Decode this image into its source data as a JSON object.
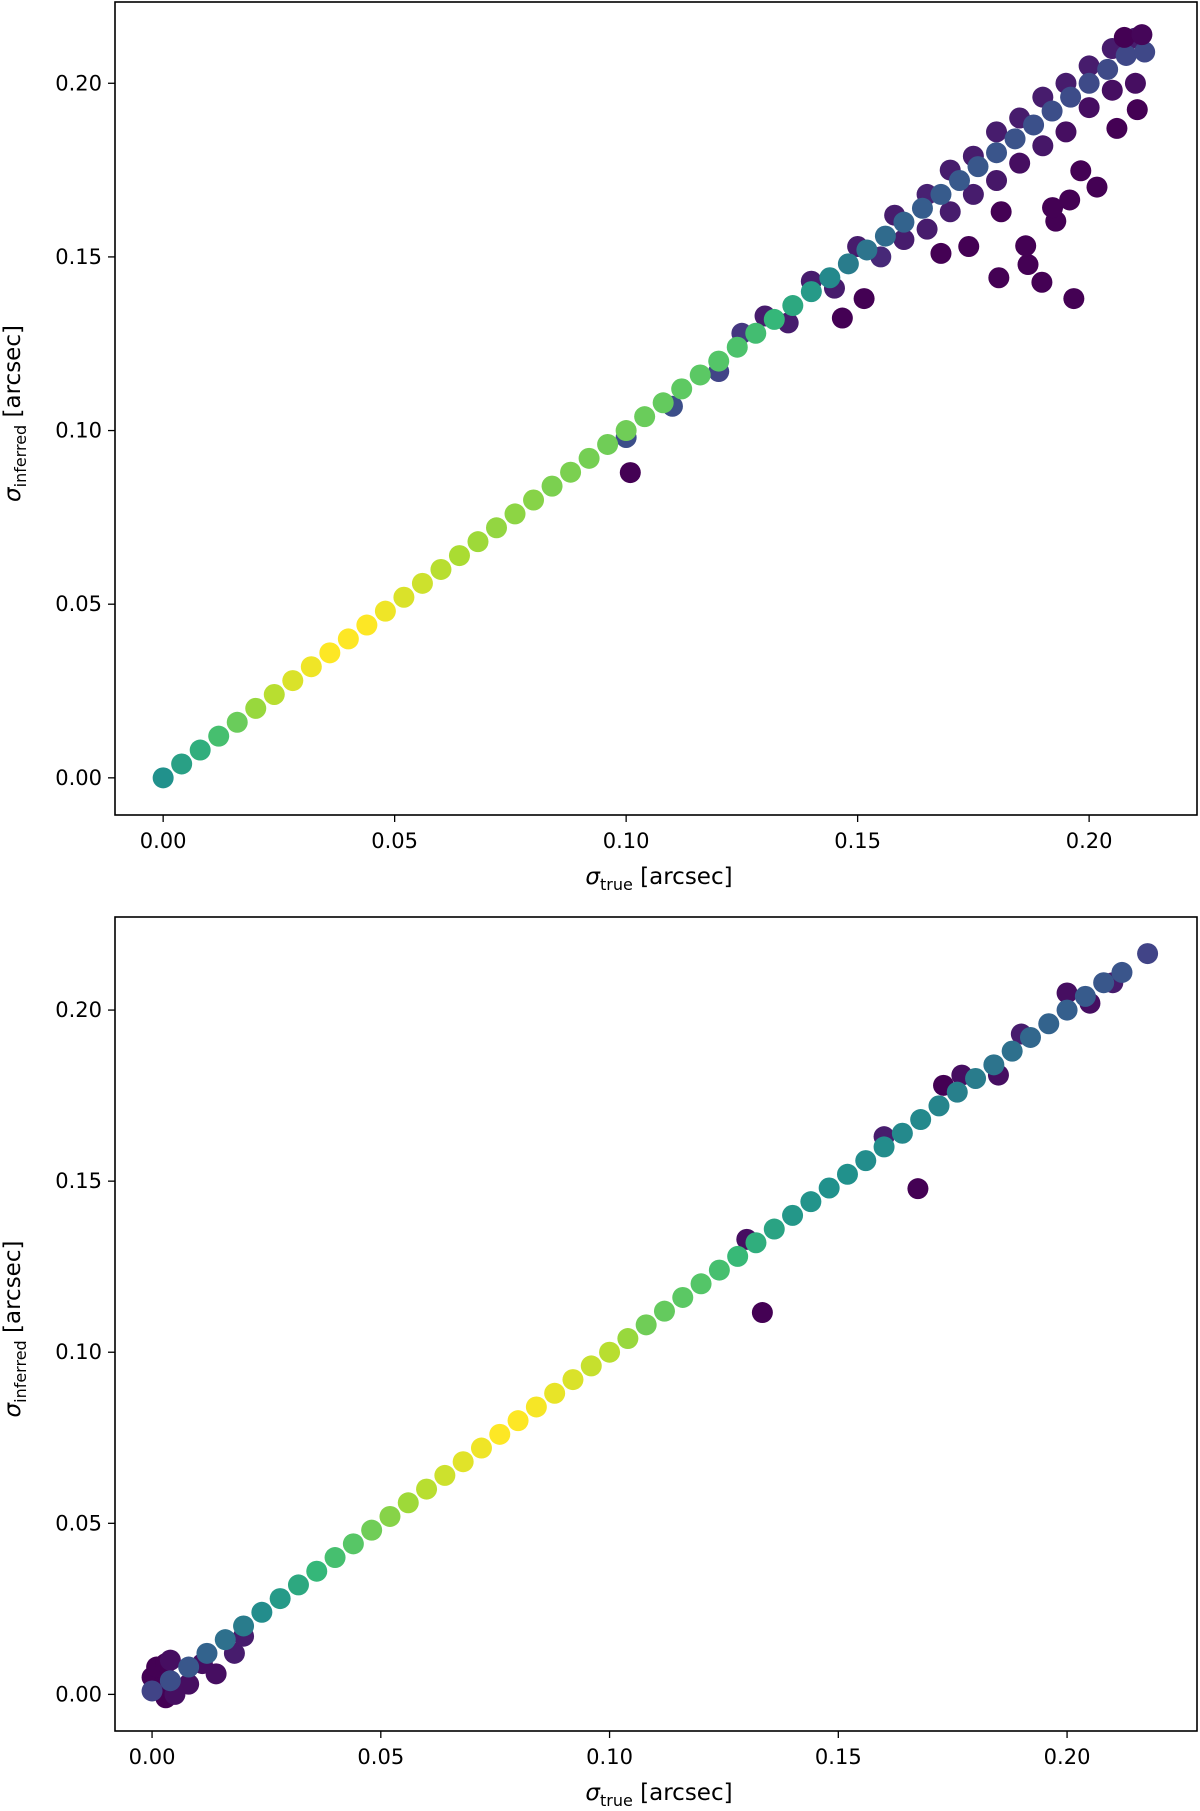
{
  "chart_data": [
    {
      "type": "scatter",
      "xlabel": {
        "symbol": "σ",
        "subscript": "true",
        "unit": "[arcsec]"
      },
      "ylabel": {
        "symbol": "σ",
        "subscript": "inferred",
        "unit": "[arcsec]"
      },
      "xlim": [
        -0.0104,
        0.2233
      ],
      "ylim": [
        -0.0107,
        0.2234
      ],
      "xticks": [
        "0.00",
        "0.05",
        "0.10",
        "0.15",
        "0.20"
      ],
      "yticks": [
        "0.00",
        "0.05",
        "0.10",
        "0.15",
        "0.20"
      ],
      "grid": false,
      "colormap": "viridis",
      "points_note_fields": [
        "x",
        "y",
        "color_value"
      ],
      "spread": [
        [
          0.1,
          0.098,
          0.3
        ],
        [
          0.11,
          0.107,
          0.3
        ],
        [
          0.12,
          0.117,
          0.25
        ],
        [
          0.125,
          0.128,
          0.2
        ],
        [
          0.13,
          0.133,
          0.1
        ],
        [
          0.135,
          0.131,
          0.1
        ],
        [
          0.14,
          0.143,
          0.1
        ],
        [
          0.145,
          0.141,
          0.1
        ],
        [
          0.15,
          0.153,
          0.1
        ],
        [
          0.155,
          0.15,
          0.15
        ],
        [
          0.158,
          0.162,
          0.1
        ],
        [
          0.16,
          0.155,
          0.1
        ],
        [
          0.165,
          0.168,
          0.12
        ],
        [
          0.165,
          0.158,
          0.1
        ],
        [
          0.17,
          0.175,
          0.1
        ],
        [
          0.17,
          0.163,
          0.1
        ],
        [
          0.175,
          0.179,
          0.1
        ],
        [
          0.175,
          0.168,
          0.1
        ],
        [
          0.18,
          0.186,
          0.1
        ],
        [
          0.18,
          0.172,
          0.08
        ],
        [
          0.185,
          0.19,
          0.1
        ],
        [
          0.185,
          0.177,
          0.05
        ],
        [
          0.19,
          0.196,
          0.1
        ],
        [
          0.19,
          0.182,
          0.08
        ],
        [
          0.195,
          0.2,
          0.1
        ],
        [
          0.195,
          0.186,
          0.05
        ],
        [
          0.2,
          0.205,
          0.1
        ],
        [
          0.2,
          0.193,
          0.05
        ],
        [
          0.205,
          0.21,
          0.1
        ],
        [
          0.205,
          0.198,
          0.05
        ],
        [
          0.21,
          0.213,
          0.1
        ],
        [
          0.21,
          0.2,
          0.05
        ]
      ],
      "outliers": [
        [
          0.1009,
          0.0879,
          0
        ],
        [
          0.1467,
          0.1324,
          0
        ],
        [
          0.1514,
          0.138,
          0
        ],
        [
          0.1805,
          0.144,
          0
        ],
        [
          0.1868,
          0.1478,
          0
        ],
        [
          0.1898,
          0.1427,
          0
        ],
        [
          0.1967,
          0.138,
          0
        ],
        [
          0.1928,
          0.1603,
          0
        ],
        [
          0.1921,
          0.1642,
          0
        ],
        [
          0.1958,
          0.1664,
          0
        ],
        [
          0.1982,
          0.1748,
          0
        ],
        [
          0.2017,
          0.1701,
          0
        ],
        [
          0.1863,
          0.1532,
          0
        ],
        [
          0.206,
          0.187,
          0
        ],
        [
          0.2104,
          0.1924,
          0
        ],
        [
          0.2076,
          0.2132,
          0
        ],
        [
          0.2114,
          0.214,
          0.02
        ],
        [
          0.181,
          0.163,
          0
        ],
        [
          0.168,
          0.151,
          0
        ],
        [
          0.174,
          0.153,
          0
        ]
      ],
      "main": [
        [
          0,
          0,
          0.5
        ],
        [
          0.004,
          0.004,
          0.55
        ],
        [
          0.008,
          0.008,
          0.6
        ],
        [
          0.012,
          0.012,
          0.68
        ],
        [
          0.016,
          0.016,
          0.77
        ],
        [
          0.02,
          0.02,
          0.85
        ],
        [
          0.024,
          0.024,
          0.9
        ],
        [
          0.028,
          0.028,
          0.95
        ],
        [
          0.032,
          0.032,
          0.98
        ],
        [
          0.036,
          0.036,
          1
        ],
        [
          0.04,
          0.04,
          1
        ],
        [
          0.044,
          0.044,
          1
        ],
        [
          0.048,
          0.048,
          0.98
        ],
        [
          0.052,
          0.052,
          0.95
        ],
        [
          0.056,
          0.056,
          0.93
        ],
        [
          0.06,
          0.06,
          0.9
        ],
        [
          0.064,
          0.064,
          0.88
        ],
        [
          0.068,
          0.068,
          0.86
        ],
        [
          0.072,
          0.072,
          0.84
        ],
        [
          0.076,
          0.076,
          0.83
        ],
        [
          0.08,
          0.08,
          0.82
        ],
        [
          0.084,
          0.084,
          0.8
        ],
        [
          0.088,
          0.088,
          0.8
        ],
        [
          0.092,
          0.092,
          0.79
        ],
        [
          0.096,
          0.096,
          0.78
        ],
        [
          0.1,
          0.1,
          0.78
        ],
        [
          0.104,
          0.104,
          0.77
        ],
        [
          0.108,
          0.108,
          0.76
        ],
        [
          0.112,
          0.112,
          0.75
        ],
        [
          0.116,
          0.116,
          0.74
        ],
        [
          0.12,
          0.12,
          0.72
        ],
        [
          0.124,
          0.124,
          0.7
        ],
        [
          0.128,
          0.128,
          0.67
        ],
        [
          0.132,
          0.132,
          0.63
        ],
        [
          0.136,
          0.136,
          0.58
        ],
        [
          0.14,
          0.14,
          0.53
        ],
        [
          0.144,
          0.144,
          0.48
        ],
        [
          0.148,
          0.148,
          0.45
        ],
        [
          0.152,
          0.152,
          0.43
        ],
        [
          0.156,
          0.156,
          0.41
        ],
        [
          0.16,
          0.16,
          0.39
        ],
        [
          0.164,
          0.164,
          0.37
        ],
        [
          0.168,
          0.168,
          0.36
        ],
        [
          0.172,
          0.172,
          0.35
        ],
        [
          0.176,
          0.176,
          0.34
        ],
        [
          0.18,
          0.18,
          0.33
        ],
        [
          0.184,
          0.184,
          0.32
        ],
        [
          0.188,
          0.188,
          0.31
        ],
        [
          0.192,
          0.192,
          0.3
        ],
        [
          0.196,
          0.196,
          0.29
        ],
        [
          0.2,
          0.2,
          0.28
        ],
        [
          0.204,
          0.204,
          0.28
        ],
        [
          0.208,
          0.208,
          0.27
        ],
        [
          0.212,
          0.209,
          0.27
        ]
      ]
    },
    {
      "type": "scatter",
      "xlabel": {
        "symbol": "σ",
        "subscript": "true",
        "unit": "[arcsec]"
      },
      "ylabel": {
        "symbol": "σ",
        "subscript": "inferred",
        "unit": "[arcsec]"
      },
      "xlim": [
        -0.0081,
        0.2284
      ],
      "ylim": [
        -0.0107,
        0.2272
      ],
      "xticks": [
        "0.00",
        "0.05",
        "0.10",
        "0.15",
        "0.20"
      ],
      "yticks": [
        "0.00",
        "0.05",
        "0.10",
        "0.15",
        "0.20"
      ],
      "grid": false,
      "colormap": "viridis",
      "spread": [
        [
          0,
          0.005,
          0
        ],
        [
          0.001,
          0.008,
          0
        ],
        [
          0.003,
          0.009,
          0
        ],
        [
          0.004,
          0.01,
          0.05
        ],
        [
          0.002,
          0.002,
          0
        ],
        [
          0.003,
          -0.001,
          0
        ],
        [
          0.005,
          0,
          0.05
        ],
        [
          0.008,
          0.003,
          0.05
        ],
        [
          0.011,
          0.009,
          0.05
        ],
        [
          0.014,
          0.006,
          0.05
        ],
        [
          0.018,
          0.012,
          0.1
        ],
        [
          0.02,
          0.017,
          0.1
        ],
        [
          0.13,
          0.133,
          0.05
        ],
        [
          0.16,
          0.163,
          0.1
        ],
        [
          0.173,
          0.178,
          0
        ],
        [
          0.177,
          0.181,
          0.05
        ],
        [
          0.185,
          0.181,
          0.05
        ],
        [
          0.19,
          0.193,
          0.1
        ],
        [
          0.2,
          0.205,
          0.05
        ],
        [
          0.205,
          0.202,
          0.05
        ],
        [
          0.21,
          0.208,
          0.1
        ]
      ],
      "outliers": [
        [
          0.1334,
          0.1116,
          0
        ],
        [
          0.1674,
          0.1478,
          0
        ],
        [
          0.2176,
          0.2165,
          0.25
        ]
      ],
      "main": [
        [
          0,
          0.001,
          0.25
        ],
        [
          0.004,
          0.004,
          0.3
        ],
        [
          0.008,
          0.008,
          0.34
        ],
        [
          0.012,
          0.012,
          0.39
        ],
        [
          0.016,
          0.016,
          0.42
        ],
        [
          0.02,
          0.02,
          0.45
        ],
        [
          0.024,
          0.024,
          0.49
        ],
        [
          0.028,
          0.028,
          0.53
        ],
        [
          0.032,
          0.032,
          0.58
        ],
        [
          0.036,
          0.036,
          0.63
        ],
        [
          0.04,
          0.04,
          0.68
        ],
        [
          0.044,
          0.044,
          0.73
        ],
        [
          0.048,
          0.048,
          0.78
        ],
        [
          0.052,
          0.052,
          0.82
        ],
        [
          0.056,
          0.056,
          0.86
        ],
        [
          0.06,
          0.06,
          0.9
        ],
        [
          0.064,
          0.064,
          0.93
        ],
        [
          0.068,
          0.068,
          0.96
        ],
        [
          0.072,
          0.072,
          0.98
        ],
        [
          0.076,
          0.076,
          1
        ],
        [
          0.08,
          0.08,
          1
        ],
        [
          0.084,
          0.084,
          0.99
        ],
        [
          0.088,
          0.088,
          0.97
        ],
        [
          0.092,
          0.092,
          0.95
        ],
        [
          0.096,
          0.096,
          0.92
        ],
        [
          0.1,
          0.1,
          0.9
        ],
        [
          0.104,
          0.104,
          0.85
        ],
        [
          0.108,
          0.108,
          0.78
        ],
        [
          0.112,
          0.112,
          0.76
        ],
        [
          0.116,
          0.116,
          0.74
        ],
        [
          0.12,
          0.12,
          0.72
        ],
        [
          0.124,
          0.124,
          0.68
        ],
        [
          0.128,
          0.128,
          0.64
        ],
        [
          0.132,
          0.132,
          0.6
        ],
        [
          0.136,
          0.136,
          0.56
        ],
        [
          0.14,
          0.14,
          0.52
        ],
        [
          0.144,
          0.144,
          0.51
        ],
        [
          0.148,
          0.148,
          0.5
        ],
        [
          0.152,
          0.152,
          0.5
        ],
        [
          0.156,
          0.156,
          0.49
        ],
        [
          0.16,
          0.16,
          0.49
        ],
        [
          0.164,
          0.164,
          0.48
        ],
        [
          0.168,
          0.168,
          0.48
        ],
        [
          0.172,
          0.172,
          0.47
        ],
        [
          0.176,
          0.176,
          0.46
        ],
        [
          0.18,
          0.18,
          0.45
        ],
        [
          0.184,
          0.184,
          0.43
        ],
        [
          0.188,
          0.188,
          0.42
        ],
        [
          0.192,
          0.192,
          0.4
        ],
        [
          0.196,
          0.196,
          0.39
        ],
        [
          0.2,
          0.2,
          0.38
        ],
        [
          0.204,
          0.204,
          0.36
        ],
        [
          0.208,
          0.208,
          0.34
        ],
        [
          0.212,
          0.211,
          0.33
        ]
      ]
    }
  ]
}
